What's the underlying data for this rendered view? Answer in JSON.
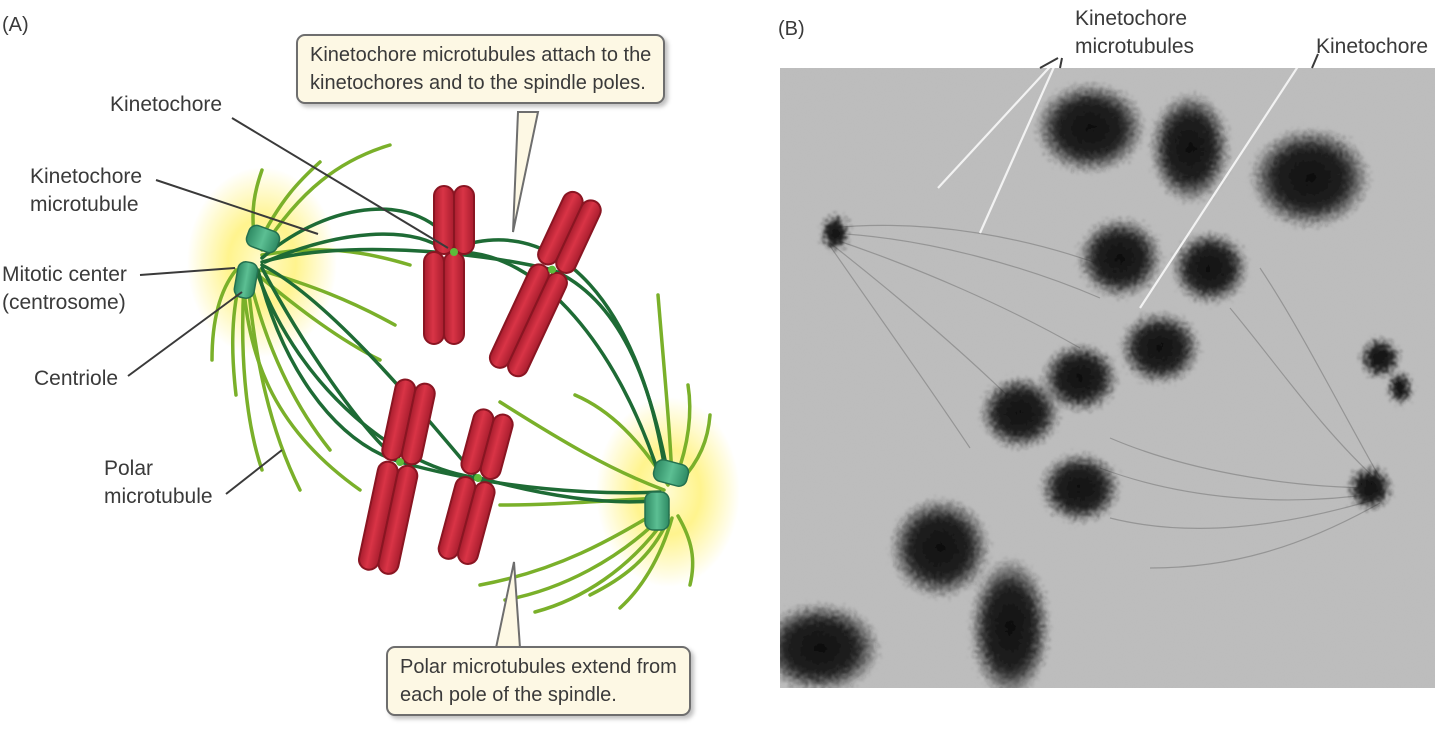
{
  "panel_a": {
    "label": "(A)",
    "callout_top": {
      "line1": "Kinetochore microtubules attach to the",
      "line2": "kinetochores and to the spindle poles."
    },
    "callout_bottom": {
      "line1": "Polar microtubules extend from",
      "line2": "each pole of the spindle."
    },
    "labels": {
      "kinetochore": "Kinetochore",
      "kinetochore_microtubule_1": "Kinetochore",
      "kinetochore_microtubule_2": "microtubule",
      "mitotic_center_1": "Mitotic center",
      "mitotic_center_2": "(centrosome)",
      "centriole": "Centriole",
      "polar_microtubule_1": "Polar",
      "polar_microtubule_2": "microtubule"
    },
    "colors": {
      "chromosome": "#c8283a",
      "kinetochore_mt": "#1e6b35",
      "polar_mt": "#7ab02a",
      "centriole": "#3d9a72",
      "centrosome_glow": "#fff27a",
      "callout_fill": "#fdf8e4"
    }
  },
  "panel_b": {
    "label": "(B)",
    "labels": {
      "kinetochore_microtubules_1": "Kinetochore",
      "kinetochore_microtubules_2": "microtubules",
      "kinetochore": "Kinetochore"
    }
  }
}
